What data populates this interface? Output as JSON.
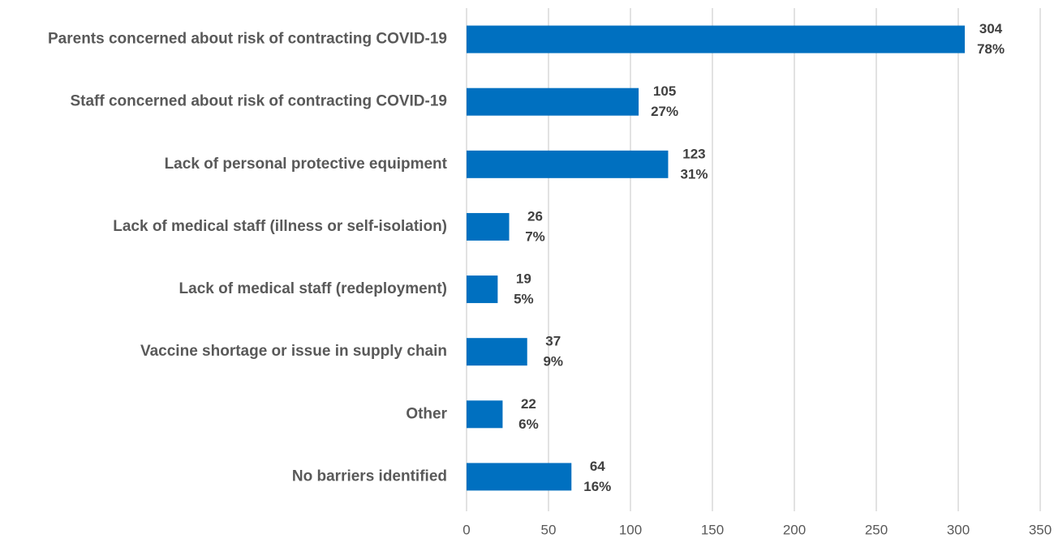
{
  "chart_data": {
    "type": "bar",
    "orientation": "horizontal",
    "categories": [
      "Parents concerned about risk of contracting COVID-19",
      "Staff concerned about risk of contracting COVID-19",
      "Lack of personal protective equipment",
      "Lack of medical staff (illness or self-isolation)",
      "Lack of medical staff (redeployment)",
      "Vaccine shortage or issue in supply chain",
      "Other",
      "No barriers identified"
    ],
    "values": [
      304,
      105,
      123,
      26,
      19,
      37,
      22,
      64
    ],
    "percent_labels": [
      "78%",
      "27%",
      "31%",
      "7%",
      "5%",
      "9%",
      "6%",
      "16%"
    ],
    "color": "#0070c0",
    "xlim": [
      0,
      350
    ],
    "xticks": [
      0,
      50,
      100,
      150,
      200,
      250,
      300,
      350
    ],
    "grid": true
  }
}
